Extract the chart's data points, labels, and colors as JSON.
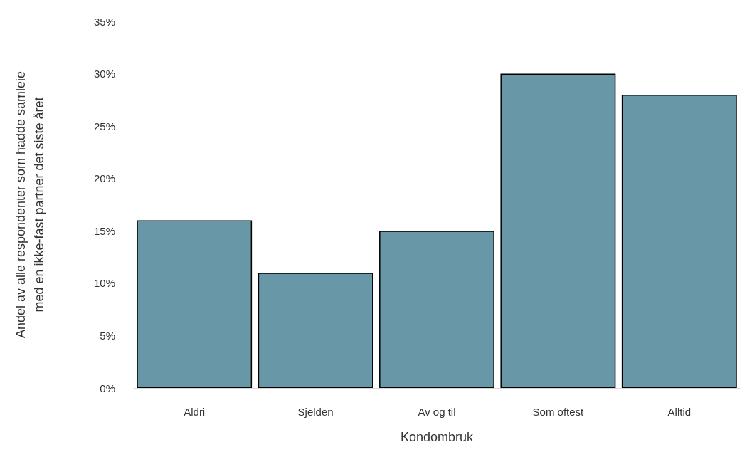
{
  "chart_data": {
    "type": "bar",
    "xlabel": "Kondombruk",
    "ylabel": "Andel av alle respondenter som hadde samleie\nmed en ikke-fast partner det siste året",
    "categories": [
      "Aldri",
      "Sjelden",
      "Av og til",
      "Som oftest",
      "Alltid"
    ],
    "values": [
      16,
      11,
      15,
      30,
      28
    ],
    "color": "#6897a7",
    "ylim": [
      0,
      35
    ],
    "yticks": [
      {
        "value": 0,
        "label": "0%"
      },
      {
        "value": 5,
        "label": "5%"
      },
      {
        "value": 10,
        "label": "10%"
      },
      {
        "value": 15,
        "label": "15%"
      },
      {
        "value": 20,
        "label": "20%"
      },
      {
        "value": 25,
        "label": "25%"
      },
      {
        "value": 30,
        "label": "30%"
      },
      {
        "value": 35,
        "label": "35%"
      }
    ],
    "data_labels": false
  }
}
